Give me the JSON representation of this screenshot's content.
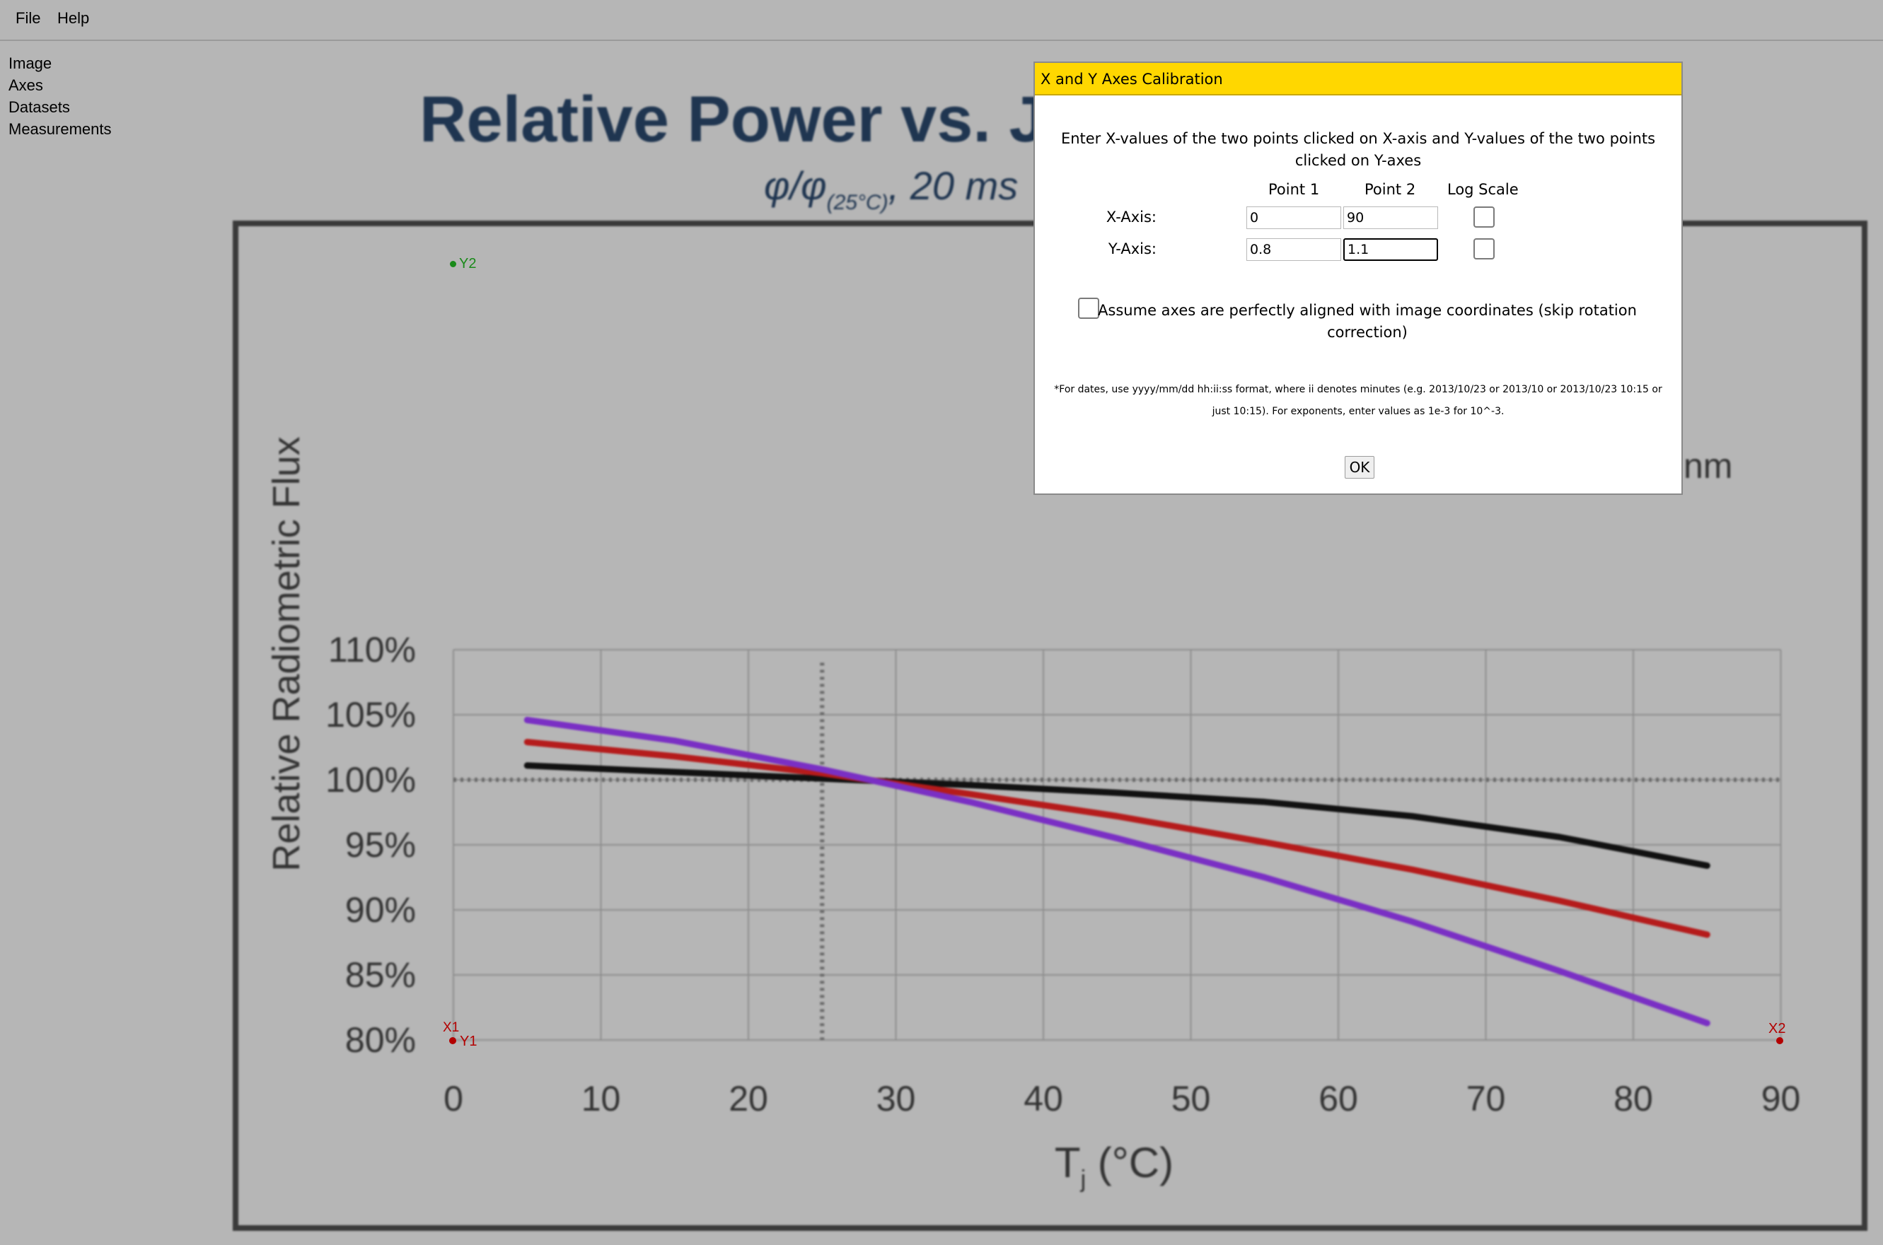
{
  "menubar": {
    "items": [
      "File",
      "Help"
    ]
  },
  "sidebar": {
    "items": [
      "Image",
      "Axes",
      "Datasets",
      "Measurements"
    ]
  },
  "plot_image": {
    "title": "Relative Power vs. Ju",
    "subtitle_phi": "φ/φ",
    "subtitle_sub": "(25°C)",
    "subtitle_tail": ", 20 ms",
    "partial_legend_text": "nm",
    "ylabel": "Relative Radiometric Flux",
    "xlabel": "T",
    "xlabel_sub": "j",
    "xlabel_tail": " (°C)",
    "y_tick_labels": [
      "110%",
      "105%",
      "100%",
      "95%",
      "90%",
      "85%",
      "80%"
    ],
    "x_tick_labels": [
      "0",
      "10",
      "20",
      "30",
      "40",
      "50",
      "60",
      "70",
      "80",
      "90"
    ],
    "line_colors": {
      "black": "#111111",
      "red": "#b51b1b",
      "purple": "#7a2fc4"
    }
  },
  "calibration_markers": {
    "y2": "Y2",
    "x1": "X1",
    "y1": "Y1",
    "x2": "X2",
    "x_color": "#b30000",
    "y_color": "#1a8a1a"
  },
  "dialog": {
    "title": "X and Y Axes Calibration",
    "instructions": "Enter X-values of the two points clicked on X-axis and Y-values of the two points clicked on Y-axes",
    "col_point1": "Point 1",
    "col_point2": "Point 2",
    "col_log": "Log Scale",
    "x_axis_label": "X-Axis:",
    "y_axis_label": "Y-Axis:",
    "x1_value": "0",
    "x2_value": "90",
    "y1_value": "0.8",
    "y2_value": "1.1",
    "x_log_checked": false,
    "y_log_checked": false,
    "align_checked": false,
    "align_text": "Assume axes are perfectly aligned with image coordinates (skip rotation correction)",
    "note": "*For dates, use yyyy/mm/dd hh:ii:ss format, where ii denotes minutes (e.g. 2013/10/23 or 2013/10 or 2013/10/23 10:15 or just 10:15). For exponents, enter values as 1e-3 for 10^-3.",
    "ok_label": "OK"
  }
}
